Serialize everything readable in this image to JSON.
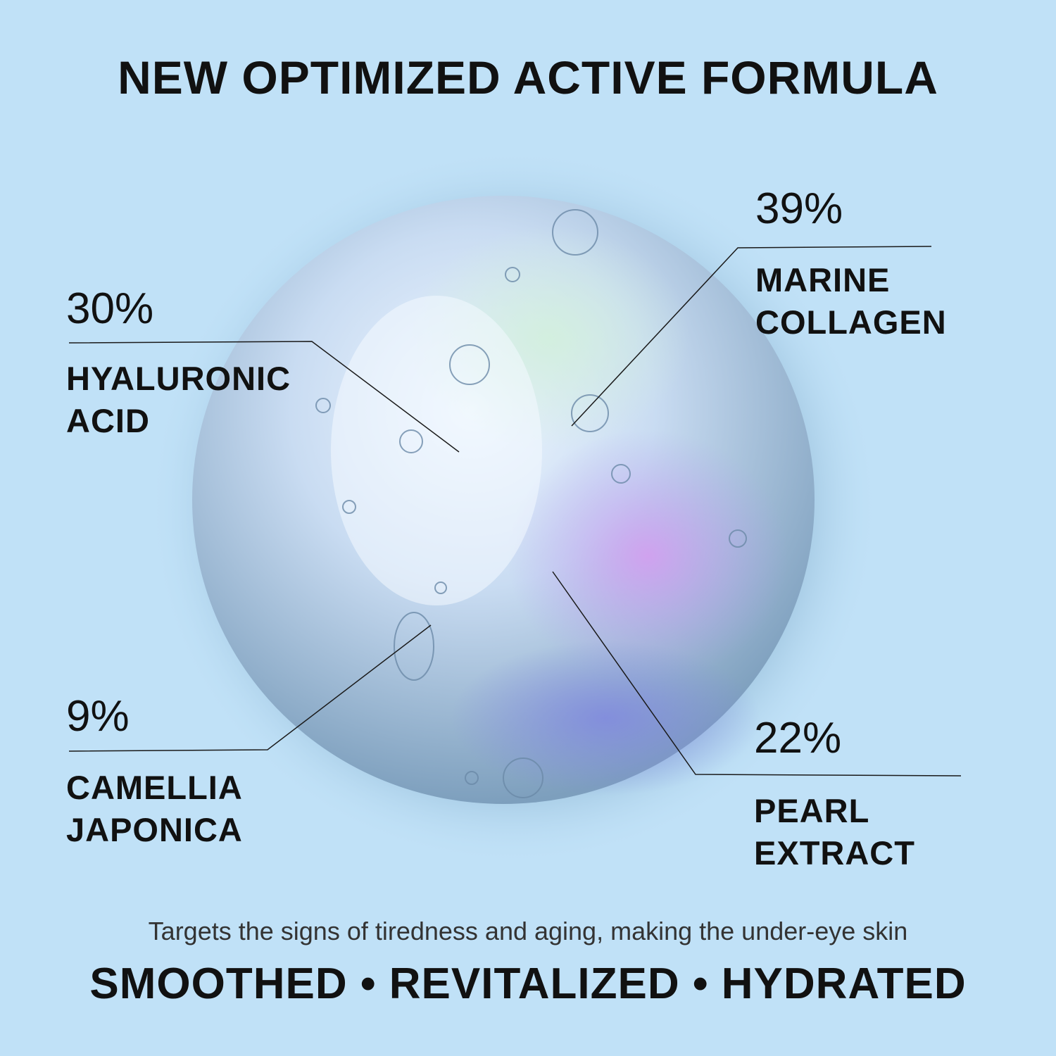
{
  "title": "NEW OPTIMIZED ACTIVE FORMULA",
  "ingredients": [
    {
      "percent": "30%",
      "name_line1": "HYALURONIC",
      "name_line2": "ACID"
    },
    {
      "percent": "39%",
      "name_line1": "MARINE",
      "name_line2": "COLLAGEN"
    },
    {
      "percent": "9%",
      "name_line1": "CAMELLIA",
      "name_line2": "JAPONICA"
    },
    {
      "percent": "22%",
      "name_line1": "PEARL",
      "name_line2": "EXTRACT"
    }
  ],
  "tagline": "Targets the signs of tiredness and aging, making the under-eye skin",
  "benefits": "SMOOTHED • REVITALIZED • HYDRATED",
  "colors": {
    "background": "#c0e1f7",
    "text": "#111111"
  }
}
